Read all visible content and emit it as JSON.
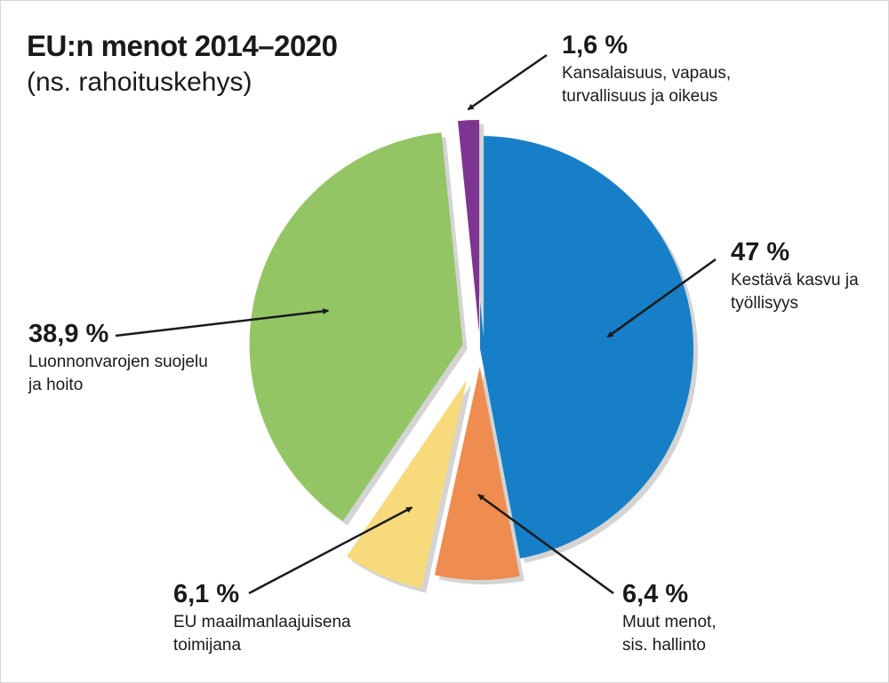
{
  "chart_data": {
    "type": "pie",
    "title": "EU:n menot 2014–2020",
    "subtitle": "(ns. rahoituskehys)",
    "slices": [
      {
        "label": [
          "Kestävä kasvu ja",
          "työllisyys"
        ],
        "value_label": "47 %",
        "value": 47,
        "color": "#177fc7"
      },
      {
        "label": [
          "Muut menot,",
          "sis. hallinto"
        ],
        "value_label": "6,4 %",
        "value": 6.4,
        "color": "#ef8c4f"
      },
      {
        "label": [
          "EU maailmanlaajuisena",
          "toimijana"
        ],
        "value_label": "6,1 %",
        "value": 6.1,
        "color": "#f6da7c"
      },
      {
        "label": [
          "Luonnonvarojen suojelu",
          "ja hoito"
        ],
        "value_label": "38,9 %",
        "value": 38.9,
        "color": "#93c565"
      },
      {
        "label": [
          "Kansalaisuus, vapaus,",
          "turvallisuus ja oikeus"
        ],
        "value_label": "1,6 %",
        "value": 1.6,
        "color": "#7e3592"
      }
    ]
  }
}
